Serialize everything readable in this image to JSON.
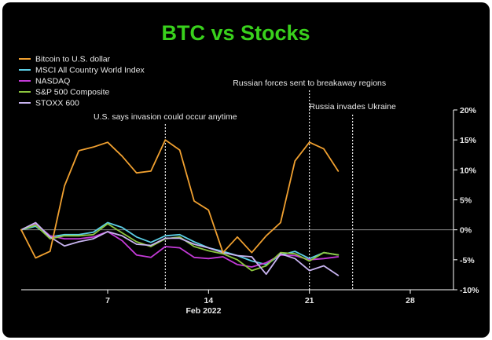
{
  "chart_data": {
    "type": "line",
    "title": "BTC vs Stocks",
    "xlabel": "Feb 2022",
    "ylabel": "",
    "x_ticks": [
      "7",
      "14",
      "21",
      "28"
    ],
    "y_ticks": [
      "20%",
      "15%",
      "10%",
      "5%",
      "0%",
      "-5%",
      "-10%"
    ],
    "ylim": [
      -10,
      20
    ],
    "y_axis_position": "right",
    "legend_position": "top-left",
    "grid": false,
    "x": [
      "2022-02-01",
      "2022-02-02",
      "2022-02-03",
      "2022-02-04",
      "2022-02-05",
      "2022-02-06",
      "2022-02-07",
      "2022-02-08",
      "2022-02-09",
      "2022-02-10",
      "2022-02-11",
      "2022-02-12",
      "2022-02-13",
      "2022-02-14",
      "2022-02-15",
      "2022-02-16",
      "2022-02-17",
      "2022-02-18",
      "2022-02-19",
      "2022-02-20",
      "2022-02-21",
      "2022-02-22",
      "2022-02-23",
      "2022-02-24",
      "2022-02-25",
      "2022-02-26",
      "2022-02-27",
      "2022-02-28",
      "2022-03-01",
      "2022-03-02",
      "2022-03-03"
    ],
    "series": [
      {
        "name": "Bitcoin to U.S. dollar",
        "color": "#f0a030",
        "values": [
          0,
          -4.7,
          -3.6,
          7.3,
          13.2,
          13.8,
          14.6,
          12.3,
          9.5,
          9.8,
          15.0,
          13.3,
          4.8,
          3.3,
          -3.8,
          -1.2,
          -3.8,
          -1.0,
          1.2,
          11.5,
          14.6,
          13.5,
          9.8,
          null,
          null,
          null,
          null,
          null,
          null,
          null,
          null
        ]
      },
      {
        "name": "MSCI All Country World Index",
        "color": "#5ccfe6",
        "values": [
          0,
          0.6,
          -1.2,
          -0.8,
          -0.8,
          -0.4,
          1.2,
          0.4,
          -1.2,
          -2.1,
          -1.0,
          -0.8,
          -2.0,
          -3.0,
          -3.6,
          -4.3,
          -5.2,
          -5.8,
          -4.2,
          -3.6,
          -4.8,
          -3.8,
          -4.2,
          null,
          null,
          null,
          null,
          null,
          null,
          null,
          null
        ]
      },
      {
        "name": "NASDAQ",
        "color": "#c43ad8",
        "values": [
          0,
          1.0,
          -1.0,
          -1.5,
          -1.5,
          -1.2,
          -0.3,
          -1.8,
          -4.2,
          -4.6,
          -2.8,
          -3.0,
          -4.6,
          -4.8,
          -4.5,
          -5.8,
          -6.2,
          -5.5,
          -4.2,
          -4.3,
          -5.0,
          -4.8,
          -4.5,
          null,
          null,
          null,
          null,
          null,
          null,
          null,
          null
        ]
      },
      {
        "name": "S&P 500 Composite",
        "color": "#8cc63f",
        "values": [
          0,
          0.8,
          -1.5,
          -1.0,
          -1.0,
          -0.8,
          1.0,
          -0.5,
          -2.0,
          -2.8,
          -1.5,
          -1.2,
          -2.8,
          -3.5,
          -4.0,
          -5.0,
          -6.8,
          -6.0,
          -3.8,
          -4.0,
          -5.2,
          -3.8,
          -4.2,
          null,
          null,
          null,
          null,
          null,
          null,
          null,
          null
        ]
      },
      {
        "name": "STOXX 600",
        "color": "#c8b4f0",
        "values": [
          0,
          1.2,
          -1.2,
          -2.7,
          -2.0,
          -1.5,
          -0.3,
          -1.0,
          -2.4,
          -2.6,
          -1.4,
          -1.4,
          -2.4,
          -3.0,
          -3.8,
          -4.3,
          -4.5,
          -7.4,
          -4.0,
          -4.8,
          -6.8,
          -6.0,
          -7.6,
          null,
          null,
          null,
          null,
          null,
          null,
          null,
          null
        ]
      }
    ],
    "annotations": [
      {
        "text": "U.S. says invasion could occur anytime",
        "x": "2022-02-11"
      },
      {
        "text": "Russian forces sent to breakaway regions",
        "x": "2022-02-21"
      },
      {
        "text": "Russia invades Ukraine",
        "x": "2022-02-24"
      }
    ]
  }
}
